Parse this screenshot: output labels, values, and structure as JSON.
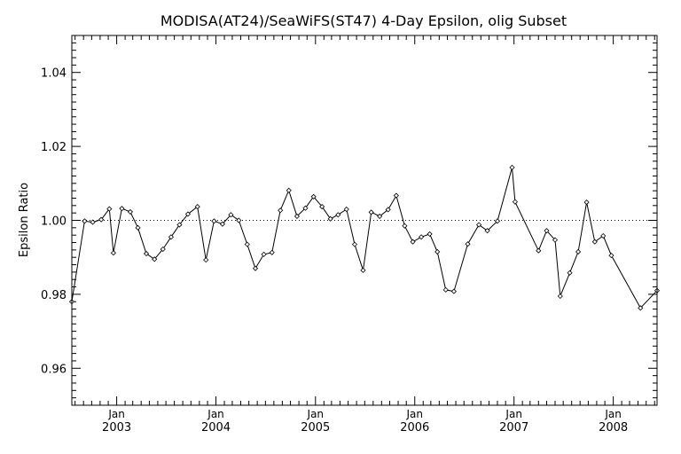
{
  "chart_data": {
    "type": "line",
    "title": "MODISA(AT24)/SeaWiFS(ST47) 4-Day Epsilon, olig Subset",
    "xlabel": "",
    "ylabel": "Epsilon Ratio",
    "xlim": [
      "2002-07-20",
      "2008-06-10"
    ],
    "ylim": [
      0.95,
      1.05
    ],
    "y_ticks": [
      0.96,
      0.98,
      1.0,
      1.02,
      1.04
    ],
    "y_tick_labels": [
      "0.96",
      "0.98",
      "1.00",
      "1.02",
      "1.04"
    ],
    "x_ticks": [
      {
        "month": "Jan",
        "year": "2003",
        "date": "2003-01-01"
      },
      {
        "month": "Jan",
        "year": "2004",
        "date": "2004-01-01"
      },
      {
        "month": "Jan",
        "year": "2005",
        "date": "2005-01-01"
      },
      {
        "month": "Jan",
        "year": "2006",
        "date": "2006-01-01"
      },
      {
        "month": "Jan",
        "year": "2007",
        "date": "2007-01-01"
      },
      {
        "month": "Jan",
        "year": "2008",
        "date": "2008-01-01"
      }
    ],
    "reference_line": {
      "y": 1.0,
      "style": "dotted"
    },
    "grid": false,
    "legend": "none",
    "marker": "diamond",
    "series": [
      {
        "points": [
          [
            "2002-07-20",
            0.978
          ],
          [
            "2002-09-05",
            0.9998
          ],
          [
            "2002-10-05",
            0.9995
          ],
          [
            "2002-11-05",
            1.0002
          ],
          [
            "2002-12-05",
            1.0031
          ],
          [
            "2002-12-20",
            0.9912
          ],
          [
            "2003-01-20",
            1.0032
          ],
          [
            "2003-02-20",
            1.0023
          ],
          [
            "2003-03-20",
            0.998
          ],
          [
            "2003-04-20",
            0.991
          ],
          [
            "2003-05-20",
            0.9895
          ],
          [
            "2003-06-20",
            0.9922
          ],
          [
            "2003-07-20",
            0.9955
          ],
          [
            "2003-08-20",
            0.9988
          ],
          [
            "2003-09-20",
            1.0017
          ],
          [
            "2003-10-25",
            1.0037
          ],
          [
            "2003-11-25",
            0.9893
          ],
          [
            "2003-12-25",
            0.9998
          ],
          [
            "2004-01-25",
            0.999
          ],
          [
            "2004-02-25",
            1.0015
          ],
          [
            "2004-03-25",
            1.0
          ],
          [
            "2004-04-25",
            0.9935
          ],
          [
            "2004-05-25",
            0.987
          ],
          [
            "2004-06-25",
            0.9908
          ],
          [
            "2004-07-25",
            0.9913
          ],
          [
            "2004-08-25",
            1.0027
          ],
          [
            "2004-09-25",
            1.0081
          ],
          [
            "2004-10-25",
            1.0011
          ],
          [
            "2004-11-25",
            1.0033
          ],
          [
            "2004-12-25",
            1.0064
          ],
          [
            "2005-01-25",
            1.0037
          ],
          [
            "2005-02-25",
            1.0004
          ],
          [
            "2005-03-25",
            1.0015
          ],
          [
            "2005-04-25",
            1.003
          ],
          [
            "2005-05-25",
            0.9935
          ],
          [
            "2005-06-25",
            0.9865
          ],
          [
            "2005-07-25",
            1.0022
          ],
          [
            "2005-08-25",
            1.0011
          ],
          [
            "2005-09-25",
            1.0029
          ],
          [
            "2005-10-25",
            1.0067
          ],
          [
            "2005-11-25",
            0.9985
          ],
          [
            "2005-12-25",
            0.9942
          ],
          [
            "2006-01-25",
            0.9955
          ],
          [
            "2006-02-25",
            0.9963
          ],
          [
            "2006-03-25",
            0.9915
          ],
          [
            "2006-04-25",
            0.9812
          ],
          [
            "2006-05-25",
            0.9808
          ],
          [
            "2006-07-15",
            0.9936
          ],
          [
            "2006-08-25",
            0.9988
          ],
          [
            "2006-09-25",
            0.9972
          ],
          [
            "2006-11-01",
            0.9998
          ],
          [
            "2006-12-25",
            1.0143
          ],
          [
            "2007-01-05",
            1.005
          ],
          [
            "2007-04-01",
            0.9918
          ],
          [
            "2007-05-01",
            0.9972
          ],
          [
            "2007-06-01",
            0.9947
          ],
          [
            "2007-06-20",
            0.9795
          ],
          [
            "2007-07-25",
            0.9858
          ],
          [
            "2007-08-25",
            0.9915
          ],
          [
            "2007-09-25",
            1.0049
          ],
          [
            "2007-10-25",
            0.9942
          ],
          [
            "2007-11-25",
            0.9958
          ],
          [
            "2007-12-25",
            0.9905
          ],
          [
            "2008-04-10",
            0.9763
          ],
          [
            "2008-06-10",
            0.981
          ]
        ]
      }
    ]
  }
}
